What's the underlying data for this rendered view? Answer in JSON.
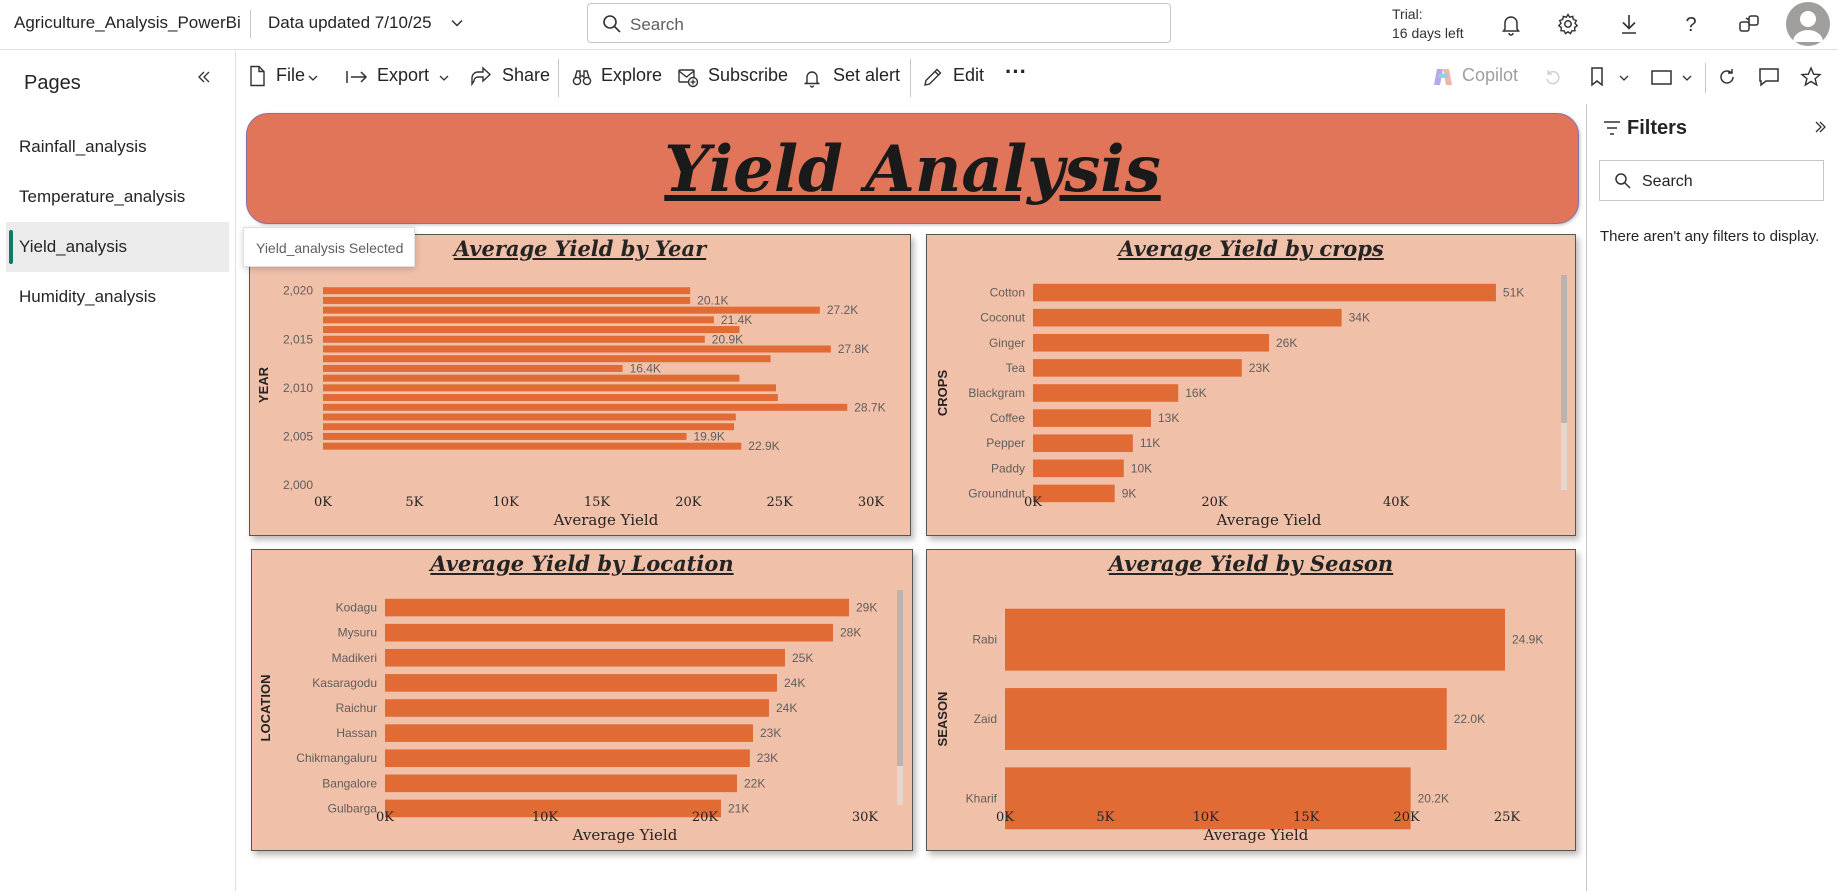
{
  "header": {
    "app_title": "Agriculture_Analysis_PowerBi",
    "data_updated": "Data updated 7/10/25",
    "search_placeholder": "Search",
    "trial_line1": "Trial:",
    "trial_line2": "16 days left"
  },
  "sidebar": {
    "title": "Pages",
    "items": [
      {
        "label": "Rainfall_analysis"
      },
      {
        "label": "Temperature_analysis"
      },
      {
        "label": "Yield_analysis"
      },
      {
        "label": "Humidity_analysis"
      }
    ],
    "tooltip": "Yield_analysis Selected"
  },
  "toolbar": {
    "file": "File",
    "export": "Export",
    "share": "Share",
    "explore": "Explore",
    "subscribe": "Subscribe",
    "set_alert": "Set alert",
    "edit": "Edit",
    "more": "···",
    "copilot": "Copilot"
  },
  "report": {
    "banner_title": "Yield Analysis"
  },
  "filters": {
    "title": "Filters",
    "search_placeholder": "Search",
    "empty_message": "There aren't any filters to display."
  },
  "colors": {
    "bar": "#e06b35",
    "panel_bg": "#f0c0a9",
    "banner_bg": "#e0755a",
    "selected_accent": "#117865"
  },
  "chart_data": [
    {
      "id": "year",
      "type": "bar",
      "orientation": "horizontal",
      "title": "Average Yield by Year",
      "xlabel": "Average Yield",
      "ylabel": "YEAR",
      "xlim": [
        0,
        30000
      ],
      "xticks": [
        "0K",
        "5K",
        "10K",
        "15K",
        "20K",
        "25K",
        "30K"
      ],
      "ylim": [
        2000,
        2021
      ],
      "yticks": [
        "2,000",
        "2,005",
        "2,010",
        "2,015",
        "2,020"
      ],
      "ytick_values": [
        2000,
        2005,
        2010,
        2015,
        2020
      ],
      "x": [
        2004,
        2005,
        2006,
        2007,
        2008,
        2009,
        2010,
        2011,
        2012,
        2013,
        2014,
        2015,
        2016,
        2017,
        2018,
        2019,
        2020
      ],
      "values": [
        22900,
        19900,
        22500,
        22600,
        28700,
        24900,
        24800,
        22800,
        16400,
        24500,
        27800,
        20900,
        22800,
        21400,
        27200,
        20100,
        20100
      ],
      "data_labels": [
        "22.9K",
        "19.9K",
        "",
        "",
        "28.7K",
        "",
        "",
        "",
        "16.4K",
        "",
        "27.8K",
        "20.9K",
        "",
        "21.4K",
        "27.2K",
        "20.1K",
        ""
      ]
    },
    {
      "id": "crops",
      "type": "bar",
      "orientation": "horizontal",
      "title": "Average Yield by crops",
      "xlabel": "Average Yield",
      "ylabel": "CROPS",
      "xlim": [
        0,
        52000
      ],
      "xticks": [
        "0K",
        "20K",
        "40K"
      ],
      "xtick_values": [
        0,
        20000,
        40000
      ],
      "categories": [
        "Cotton",
        "Coconut",
        "Ginger",
        "Tea",
        "Blackgram",
        "Coffee",
        "Pepper",
        "Paddy",
        "Groundnut"
      ],
      "values": [
        51000,
        34000,
        26000,
        23000,
        16000,
        13000,
        11000,
        10000,
        9000
      ],
      "data_labels": [
        "51K",
        "34K",
        "26K",
        "23K",
        "16K",
        "13K",
        "11K",
        "10K",
        "9K"
      ]
    },
    {
      "id": "location",
      "type": "bar",
      "orientation": "horizontal",
      "title": "Average Yield by Location",
      "xlabel": "Average Yield",
      "ylabel": "LOCATION",
      "xlim": [
        0,
        30000
      ],
      "xticks": [
        "0K",
        "10K",
        "20K",
        "30K"
      ],
      "xtick_values": [
        0,
        10000,
        20000,
        30000
      ],
      "categories": [
        "Kodagu",
        "Mysuru",
        "Madikeri",
        "Kasaragodu",
        "Raichur",
        "Hassan",
        "Chikmangaluru",
        "Bangalore",
        "Gulbarga"
      ],
      "values": [
        29000,
        28000,
        25000,
        24500,
        24000,
        23000,
        22800,
        22000,
        21000
      ],
      "data_labels": [
        "29K",
        "28K",
        "25K",
        "24K",
        "24K",
        "23K",
        "23K",
        "22K",
        "21K"
      ]
    },
    {
      "id": "season",
      "type": "bar",
      "orientation": "horizontal",
      "title": "Average Yield by Season",
      "xlabel": "Average Yield",
      "ylabel": "SEASON",
      "xlim": [
        0,
        25000
      ],
      "xticks": [
        "0K",
        "5K",
        "10K",
        "15K",
        "20K",
        "25K"
      ],
      "xtick_values": [
        0,
        5000,
        10000,
        15000,
        20000,
        25000
      ],
      "categories": [
        "Rabi",
        "Zaid",
        "Kharif"
      ],
      "values": [
        24900,
        22000,
        20200
      ],
      "data_labels": [
        "24.9K",
        "22.0K",
        "20.2K"
      ]
    }
  ]
}
